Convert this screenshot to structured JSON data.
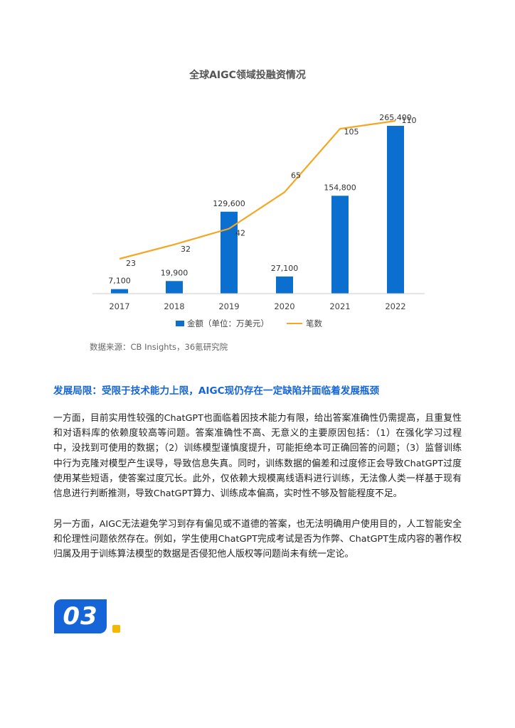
{
  "chart_data": {
    "type": "bar",
    "title": "全球AIGC领域投融资情况",
    "categories": [
      "2017",
      "2018",
      "2019",
      "2020",
      "2021",
      "2022"
    ],
    "series": [
      {
        "name": "金额（单位：万美元）",
        "type": "bar",
        "color": "#0a6fcf",
        "values": [
          7100,
          19900,
          129600,
          27100,
          154800,
          265400
        ],
        "labels": [
          "7,100",
          "19,900",
          "129,600",
          "27,100",
          "154,800",
          "265,400"
        ]
      },
      {
        "name": "笔数",
        "type": "line",
        "color": "#f5a623",
        "values": [
          23,
          32,
          42,
          65,
          105,
          110
        ],
        "labels": [
          "23",
          "32",
          "42",
          "65",
          "105",
          "110"
        ]
      }
    ],
    "legend_position": "bottom",
    "grid": false
  },
  "source": "数据来源：CB Insights，36氪研究院",
  "section": {
    "heading": "发展局限：受限于技术能力上限，AIGC现仍存在一定缺陷并面临着发展瓶颈",
    "paragraphs": [
      "一方面，目前实用性较强的ChatGPT也面临着因技术能力有限，给出答案准确性仍需提高，且重复性和对语料库的依赖度较高等问题。答案准确性不高、无意义的主要原因包括：（1）在强化学习过程中，没找到可使用的数据；（2）训练模型谨慎度提升，可能拒绝本可正确回答的问题；（3）监督训练中行为克隆对模型产生误导，导致信息失真。同时，训练数据的偏差和过度修正会导致ChatGPT过度使用某些短语，使答案过度冗长。此外，仅依赖大规模离线语料进行训练，无法像人类一样基于现有信息进行判断推测，导致ChatGPT算力、训练成本偏高，实时性不够及智能程度不足。",
      "另一方面，AIGC无法避免学习到存有偏见或不道德的答案，也无法明确用户使用目的，人工智能安全和伦理性问题依然存在。例如，学生使用ChatGPT完成考试是否为作弊、ChatGPT生成内容的著作权归属及用于训练算法模型的数据是否侵犯他人版权等问题尚未有统一定论。"
    ]
  },
  "section_number": "03",
  "colors": {
    "accent_blue": "#1565d8",
    "accent_yellow": "#f5b800"
  }
}
